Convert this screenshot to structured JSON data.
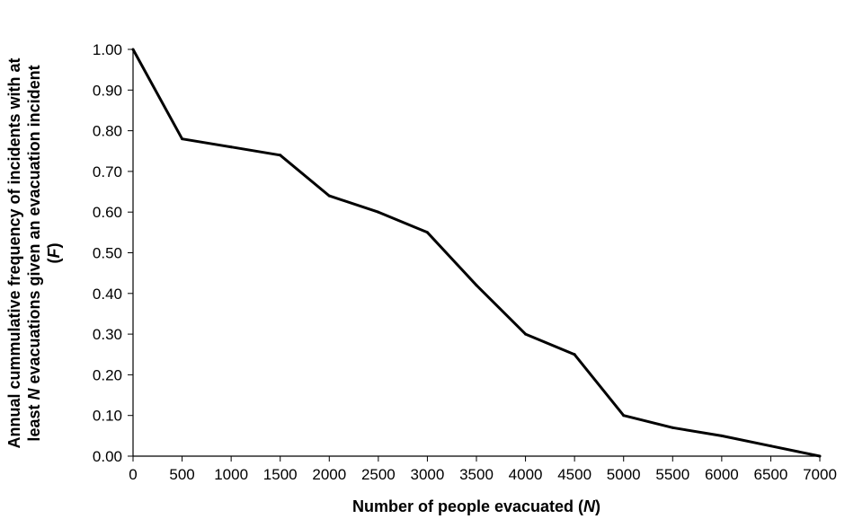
{
  "chart_data": {
    "type": "line",
    "title": "",
    "xlabel": "Number of people evacuated (",
    "xlabel_var": "N",
    "xlabel_end": ")",
    "ylabel_line1_pre": "Annual cummulative frequency of incidents with at",
    "ylabel_line2_pre": "least ",
    "ylabel_line2_var": "N",
    "ylabel_line2_post": " evacuations given an evacuation incident",
    "ylabel_line3_pre": "(",
    "ylabel_line3_var": "F",
    "ylabel_line3_post": ")",
    "xlim": [
      0,
      7000
    ],
    "ylim": [
      0,
      1
    ],
    "x_ticks": [
      "0",
      "500",
      "1000",
      "1500",
      "2000",
      "2500",
      "3000",
      "3500",
      "4000",
      "4500",
      "5000",
      "5500",
      "6000",
      "6500",
      "7000"
    ],
    "y_ticks": [
      "0.00",
      "0.10",
      "0.20",
      "0.30",
      "0.40",
      "0.50",
      "0.60",
      "0.70",
      "0.80",
      "0.90",
      "1.00"
    ],
    "grid": false,
    "legend": "none",
    "line_color": "#000000",
    "series": [
      {
        "x": [
          0,
          500,
          1000,
          1500,
          2000,
          2500,
          3000,
          3500,
          4000,
          4500,
          5000,
          5500,
          6000,
          6500,
          7000
        ],
        "values": [
          1.0,
          0.78,
          0.76,
          0.74,
          0.64,
          0.6,
          0.55,
          0.42,
          0.3,
          0.25,
          0.1,
          0.07,
          0.05,
          0.025,
          0.0
        ]
      }
    ]
  }
}
